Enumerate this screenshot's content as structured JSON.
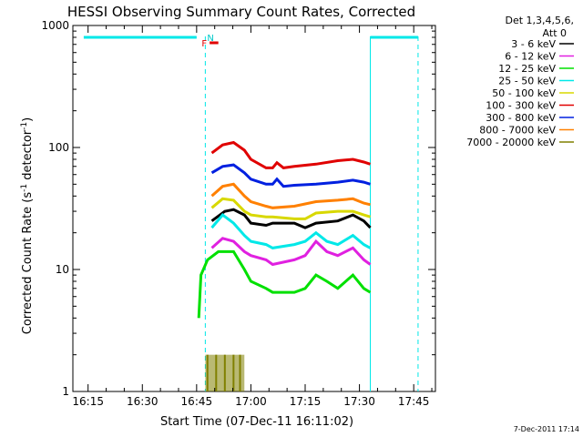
{
  "chart_data": {
    "type": "line",
    "title": "HESSI Observing Summary Count Rates, Corrected",
    "xlabel": "Start Time (07-Dec-11 16:11:02)",
    "ylabel": "Corrected Count Rate (s",
    "ylabel_sup1": "-1",
    "ylabel_mid": " detector",
    "ylabel_sup2": "-1",
    "ylabel_end": ")",
    "x_ticks": [
      "16:15",
      "16:30",
      "16:45",
      "17:00",
      "17:15",
      "17:30",
      "17:45"
    ],
    "y_ticks": [
      "1",
      "10",
      "100",
      "1000"
    ],
    "y_scale": "log",
    "ylim": [
      1,
      1000
    ],
    "legend_header": [
      "Det 1,3,4,5,6,",
      "Att 0"
    ],
    "legend_position": "right",
    "footer": "7-Dec-2011 17:14",
    "series": [
      {
        "name": "3 - 6 keV",
        "color": "#000000",
        "values": [
          [
            16.82,
            25
          ],
          [
            16.88,
            30
          ],
          [
            16.92,
            31
          ],
          [
            16.97,
            28
          ],
          [
            17.0,
            24
          ],
          [
            17.07,
            23
          ],
          [
            17.1,
            24
          ],
          [
            17.2,
            24
          ],
          [
            17.25,
            22
          ],
          [
            17.3,
            24
          ],
          [
            17.4,
            25
          ],
          [
            17.47,
            28
          ],
          [
            17.52,
            25
          ],
          [
            17.55,
            22
          ]
        ]
      },
      {
        "name": "6 - 12 keV",
        "color": "#e020e0",
        "values": [
          [
            16.82,
            15
          ],
          [
            16.87,
            18
          ],
          [
            16.92,
            17
          ],
          [
            16.97,
            14
          ],
          [
            17.0,
            13
          ],
          [
            17.07,
            12
          ],
          [
            17.1,
            11
          ],
          [
            17.2,
            12
          ],
          [
            17.25,
            13
          ],
          [
            17.3,
            17
          ],
          [
            17.35,
            14
          ],
          [
            17.4,
            13
          ],
          [
            17.47,
            15
          ],
          [
            17.52,
            12
          ],
          [
            17.55,
            11
          ]
        ]
      },
      {
        "name": "12 - 25 keV",
        "color": "#00e000",
        "values": [
          [
            16.76,
            4
          ],
          [
            16.77,
            9
          ],
          [
            16.8,
            12
          ],
          [
            16.85,
            14
          ],
          [
            16.92,
            14
          ],
          [
            16.97,
            10
          ],
          [
            17.0,
            8
          ],
          [
            17.07,
            7
          ],
          [
            17.1,
            6.5
          ],
          [
            17.2,
            6.5
          ],
          [
            17.25,
            7
          ],
          [
            17.3,
            9
          ],
          [
            17.35,
            8
          ],
          [
            17.4,
            7
          ],
          [
            17.47,
            9
          ],
          [
            17.52,
            7
          ],
          [
            17.55,
            6.5
          ]
        ]
      },
      {
        "name": "25 - 50 keV",
        "color": "#00e8e8",
        "values": [
          [
            16.82,
            22
          ],
          [
            16.87,
            28
          ],
          [
            16.92,
            24
          ],
          [
            16.97,
            19
          ],
          [
            17.0,
            17
          ],
          [
            17.07,
            16
          ],
          [
            17.1,
            15
          ],
          [
            17.2,
            16
          ],
          [
            17.25,
            17
          ],
          [
            17.3,
            20
          ],
          [
            17.35,
            17
          ],
          [
            17.4,
            16
          ],
          [
            17.47,
            19
          ],
          [
            17.52,
            16
          ],
          [
            17.55,
            15
          ]
        ]
      },
      {
        "name": "50 - 100 keV",
        "color": "#d8d800",
        "values": [
          [
            16.82,
            32
          ],
          [
            16.87,
            38
          ],
          [
            16.92,
            37
          ],
          [
            16.97,
            30
          ],
          [
            17.0,
            28
          ],
          [
            17.07,
            27
          ],
          [
            17.1,
            27
          ],
          [
            17.2,
            26
          ],
          [
            17.25,
            26
          ],
          [
            17.3,
            29
          ],
          [
            17.4,
            30
          ],
          [
            17.47,
            30
          ],
          [
            17.52,
            28
          ],
          [
            17.55,
            27
          ]
        ]
      },
      {
        "name": "100 - 300 keV",
        "color": "#e00000",
        "values": [
          [
            16.82,
            90
          ],
          [
            16.87,
            105
          ],
          [
            16.92,
            110
          ],
          [
            16.97,
            95
          ],
          [
            17.0,
            80
          ],
          [
            17.07,
            68
          ],
          [
            17.1,
            68
          ],
          [
            17.12,
            75
          ],
          [
            17.15,
            68
          ],
          [
            17.2,
            70
          ],
          [
            17.3,
            73
          ],
          [
            17.4,
            78
          ],
          [
            17.47,
            80
          ],
          [
            17.52,
            76
          ],
          [
            17.55,
            73
          ]
        ]
      },
      {
        "name": "300 - 800 keV",
        "color": "#0020e0",
        "values": [
          [
            16.82,
            62
          ],
          [
            16.87,
            70
          ],
          [
            16.92,
            72
          ],
          [
            16.97,
            62
          ],
          [
            17.0,
            55
          ],
          [
            17.07,
            50
          ],
          [
            17.1,
            50
          ],
          [
            17.12,
            55
          ],
          [
            17.15,
            48
          ],
          [
            17.2,
            49
          ],
          [
            17.3,
            50
          ],
          [
            17.4,
            52
          ],
          [
            17.47,
            54
          ],
          [
            17.52,
            52
          ],
          [
            17.55,
            50
          ]
        ]
      },
      {
        "name": "800 - 7000 keV",
        "color": "#ff8000",
        "values": [
          [
            16.82,
            40
          ],
          [
            16.87,
            48
          ],
          [
            16.92,
            50
          ],
          [
            16.97,
            40
          ],
          [
            17.0,
            36
          ],
          [
            17.07,
            33
          ],
          [
            17.1,
            32
          ],
          [
            17.2,
            33
          ],
          [
            17.3,
            36
          ],
          [
            17.4,
            37
          ],
          [
            17.47,
            38
          ],
          [
            17.52,
            35
          ],
          [
            17.55,
            34
          ]
        ]
      },
      {
        "name": "7000 - 20000 keV",
        "color": "#808000",
        "values": [
          [
            16.79,
            1
          ],
          [
            16.8,
            2
          ],
          [
            16.82,
            1
          ],
          [
            16.84,
            2
          ],
          [
            16.86,
            1
          ],
          [
            16.88,
            2
          ],
          [
            16.9,
            1
          ],
          [
            16.92,
            2
          ],
          [
            16.94,
            1
          ],
          [
            16.95,
            2
          ],
          [
            16.97,
            1
          ]
        ]
      }
    ],
    "annotations": [
      {
        "text": "N",
        "color": "#00c8c8"
      },
      {
        "text": "F",
        "color": "#e00000"
      }
    ],
    "attenuator_markers": {
      "dashed_x": [
        16.79,
        17.77
      ],
      "solid_x": [
        17.55
      ],
      "cyan_bars": [
        [
          16.23,
          16.75
        ],
        [
          17.55,
          17.77
        ]
      ],
      "flare_bar": [
        16.81,
        16.85
      ]
    },
    "colors": {
      "cyan": "#00e8e8",
      "axis": "#000000"
    }
  }
}
